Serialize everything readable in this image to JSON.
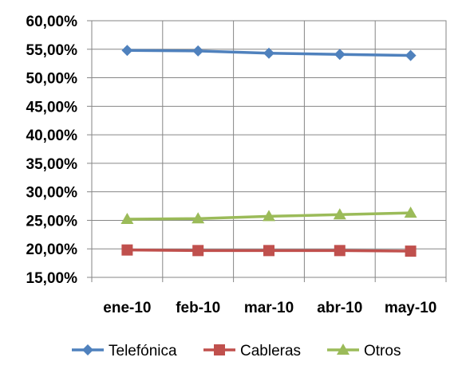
{
  "chart_data": {
    "type": "line",
    "categories": [
      "ene-10",
      "feb-10",
      "mar-10",
      "abr-10",
      "may-10"
    ],
    "ylim": [
      0.15,
      0.6
    ],
    "yticks": [
      0.15,
      0.2,
      0.25,
      0.3,
      0.35,
      0.4,
      0.45,
      0.5,
      0.55,
      0.6
    ],
    "ytick_labels": [
      "15,00%",
      "20,00%",
      "25,00%",
      "30,00%",
      "35,00%",
      "40,00%",
      "45,00%",
      "50,00%",
      "55,00%",
      "60,00%"
    ],
    "grid": "both",
    "legend_position": "bottom",
    "series": [
      {
        "name": "Telefónica",
        "values": [
          0.548,
          0.547,
          0.543,
          0.541,
          0.539
        ],
        "color": "#4F81BD",
        "marker": "diamond"
      },
      {
        "name": "Cableras",
        "values": [
          0.198,
          0.197,
          0.197,
          0.197,
          0.196
        ],
        "color": "#C0504D",
        "marker": "square"
      },
      {
        "name": "Otros",
        "values": [
          0.252,
          0.253,
          0.257,
          0.26,
          0.263
        ],
        "color": "#9BBB59",
        "marker": "triangle"
      }
    ]
  }
}
